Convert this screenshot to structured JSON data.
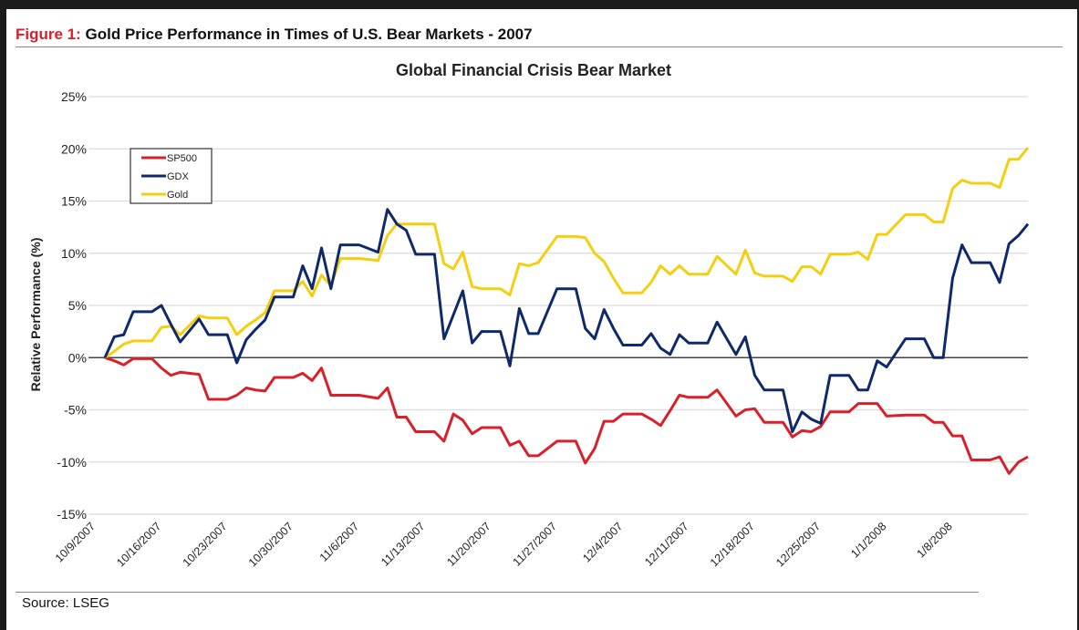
{
  "figure": {
    "label": "Figure 1:",
    "title": "Gold Price Performance in Times of U.S. Bear Markets - 2007"
  },
  "source": "Source: LSEG",
  "chart_data": {
    "type": "line",
    "title": "Global Financial Crisis Bear Market",
    "xlabel": "",
    "ylabel": "Relative Performance (%)",
    "ylim": [
      -15,
      25
    ],
    "yticks": [
      25,
      20,
      15,
      10,
      5,
      0,
      -5,
      -10,
      -15
    ],
    "ytick_labels": [
      "25%",
      "20%",
      "15%",
      "10%",
      "5%",
      "0%",
      "-5%",
      "-10%",
      "-15%"
    ],
    "xlim": [
      "2007-10-09",
      "2008-01-15"
    ],
    "xtick_dates": [
      "2007-10-09",
      "2007-10-16",
      "2007-10-23",
      "2007-10-30",
      "2007-11-06",
      "2007-11-13",
      "2007-11-20",
      "2007-11-27",
      "2007-12-04",
      "2007-12-11",
      "2007-12-18",
      "2007-12-25",
      "2008-01-01",
      "2008-01-08"
    ],
    "xtick_labels": [
      "10/9/2007",
      "10/16/2007",
      "10/23/2007",
      "10/30/2007",
      "11/6/2007",
      "11/13/2007",
      "11/20/2007",
      "11/27/2007",
      "12/4/2007",
      "12/11/2007",
      "12/18/2007",
      "12/25/2007",
      "1/1/2008",
      "1/8/2008"
    ],
    "grid": "horizontal",
    "legend": "top-left",
    "x": [
      "2007-10-09",
      "2007-10-10",
      "2007-10-11",
      "2007-10-12",
      "2007-10-13",
      "2007-10-14",
      "2007-10-15",
      "2007-10-16",
      "2007-10-17",
      "2007-10-19",
      "2007-10-20",
      "2007-10-21",
      "2007-10-22",
      "2007-10-23",
      "2007-10-24",
      "2007-10-25",
      "2007-10-26",
      "2007-10-27",
      "2007-10-28",
      "2007-10-29",
      "2007-10-30",
      "2007-10-31",
      "2007-11-01",
      "2007-11-02",
      "2007-11-03",
      "2007-11-04",
      "2007-11-05",
      "2007-11-07",
      "2007-11-08",
      "2007-11-09",
      "2007-11-10",
      "2007-11-11",
      "2007-11-12",
      "2007-11-13",
      "2007-11-14",
      "2007-11-15",
      "2007-11-16",
      "2007-11-17",
      "2007-11-18",
      "2007-11-19",
      "2007-11-20",
      "2007-11-21",
      "2007-11-22",
      "2007-11-23",
      "2007-11-24",
      "2007-11-26",
      "2007-11-27",
      "2007-11-28",
      "2007-11-29",
      "2007-11-30",
      "2007-12-01",
      "2007-12-02",
      "2007-12-03",
      "2007-12-04",
      "2007-12-05",
      "2007-12-06",
      "2007-12-07",
      "2007-12-08",
      "2007-12-09",
      "2007-12-10",
      "2007-12-11",
      "2007-12-12",
      "2007-12-13",
      "2007-12-15",
      "2007-12-16",
      "2007-12-17",
      "2007-12-18",
      "2007-12-19",
      "2007-12-20",
      "2007-12-21",
      "2007-12-22",
      "2007-12-23",
      "2007-12-24",
      "2007-12-25",
      "2007-12-26",
      "2007-12-27",
      "2007-12-28",
      "2007-12-29",
      "2007-12-30",
      "2007-12-31",
      "2008-01-02",
      "2008-01-03",
      "2008-01-04",
      "2008-01-05",
      "2008-01-06",
      "2008-01-07",
      "2008-01-08",
      "2008-01-09",
      "2008-01-10",
      "2008-01-11",
      "2008-01-12",
      "2008-01-13",
      "2008-01-14",
      "2008-01-15"
    ],
    "series": [
      {
        "name": "SP500",
        "color": "#d8202a",
        "values": [
          0,
          -0.3,
          -0.7,
          -0.1,
          -0.1,
          -0.1,
          -1.0,
          -1.7,
          -1.4,
          -1.6,
          -4.0,
          -4.0,
          -4.0,
          -3.6,
          -2.9,
          -3.1,
          -3.2,
          -1.9,
          -1.9,
          -1.9,
          -1.5,
          -2.2,
          -1.0,
          -3.6,
          -3.6,
          -3.6,
          -3.6,
          -3.9,
          -2.9,
          -5.7,
          -5.7,
          -7.1,
          -7.1,
          -7.1,
          -8.0,
          -5.4,
          -6.0,
          -7.3,
          -6.7,
          -6.7,
          -6.7,
          -8.4,
          -8.0,
          -9.4,
          -9.4,
          -8.0,
          -8.0,
          -8.0,
          -10.1,
          -8.7,
          -6.1,
          -6.1,
          -5.4,
          -5.4,
          -5.4,
          -5.9,
          -6.5,
          -5.1,
          -3.6,
          -3.8,
          -3.8,
          -3.8,
          -3.1,
          -5.6,
          -5.0,
          -4.9,
          -6.2,
          -6.2,
          -6.2,
          -7.6,
          -7.0,
          -7.1,
          -6.6,
          -5.2,
          -5.2,
          -5.2,
          -4.4,
          -4.4,
          -4.4,
          -5.6,
          -5.5,
          -5.5,
          -5.5,
          -6.2,
          -6.2,
          -7.5,
          -7.5,
          -9.8,
          -9.8,
          -9.8,
          -9.5,
          -11.1,
          -10.0,
          -9.5
        ]
      },
      {
        "name": "GDX",
        "color": "#0e2a6b",
        "values": [
          0,
          2.0,
          2.2,
          4.4,
          4.4,
          4.4,
          5.0,
          3.2,
          1.5,
          3.7,
          2.2,
          2.2,
          2.2,
          -0.5,
          1.7,
          2.7,
          3.6,
          5.8,
          5.8,
          5.8,
          8.8,
          6.6,
          10.5,
          6.6,
          10.8,
          10.8,
          10.8,
          10.1,
          14.2,
          12.8,
          12.2,
          9.9,
          9.9,
          9.9,
          1.8,
          4.1,
          6.4,
          1.4,
          2.5,
          2.5,
          2.5,
          -0.8,
          4.7,
          2.3,
          2.3,
          6.6,
          6.6,
          6.6,
          2.8,
          1.8,
          4.6,
          2.8,
          1.2,
          1.2,
          1.2,
          2.3,
          0.9,
          0.3,
          2.2,
          1.4,
          1.4,
          1.4,
          3.4,
          0.3,
          2.0,
          -1.7,
          -3.1,
          -3.1,
          -3.1,
          -7.1,
          -5.2,
          -5.9,
          -6.3,
          -1.7,
          -1.7,
          -1.7,
          -3.1,
          -3.1,
          -0.3,
          -0.9,
          1.8,
          1.8,
          1.8,
          0,
          0,
          7.6,
          10.8,
          9.1,
          9.1,
          9.1,
          7.2,
          10.9,
          11.7,
          12.8
        ]
      },
      {
        "name": "Gold",
        "color": "#f5cf0f",
        "values": [
          0,
          0.6,
          1.3,
          1.6,
          1.6,
          1.6,
          2.9,
          3.0,
          2.2,
          4.0,
          3.8,
          3.8,
          3.8,
          2.2,
          3.0,
          3.6,
          4.3,
          6.4,
          6.4,
          6.4,
          7.3,
          5.9,
          7.9,
          6.9,
          9.5,
          9.5,
          9.5,
          9.3,
          11.7,
          12.8,
          12.8,
          12.8,
          12.8,
          12.8,
          9.0,
          8.5,
          10.1,
          6.8,
          6.6,
          6.6,
          6.6,
          6.0,
          9.0,
          8.8,
          9.1,
          11.6,
          11.6,
          11.6,
          11.5,
          10.0,
          9.2,
          7.6,
          6.2,
          6.2,
          6.2,
          7.2,
          8.8,
          8.0,
          8.8,
          8.0,
          8.0,
          8.0,
          9.7,
          8.0,
          10.3,
          8.1,
          7.8,
          7.8,
          7.8,
          7.3,
          8.7,
          8.7,
          8.0,
          9.9,
          9.9,
          9.9,
          10.1,
          9.4,
          11.8,
          11.8,
          13.7,
          13.7,
          13.7,
          13.0,
          13.0,
          16.2,
          17.0,
          16.7,
          16.7,
          16.7,
          16.3,
          19.0,
          19.0,
          20.1
        ]
      }
    ]
  }
}
